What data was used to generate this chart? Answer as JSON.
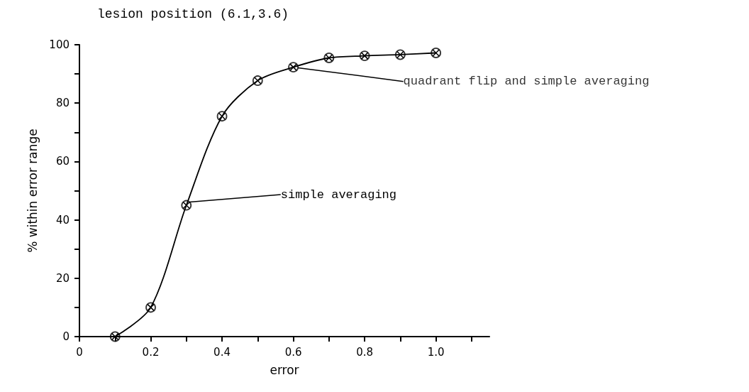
{
  "chart_data": {
    "type": "line",
    "title": "lesion position (6.1,3.6)",
    "xlabel": "error",
    "ylabel": "% within error range",
    "x": [
      0.1,
      0.2,
      0.3,
      0.4,
      0.5,
      0.6,
      0.7,
      0.8,
      0.9,
      1.0
    ],
    "series": [
      {
        "name": "simple averaging",
        "type": "line",
        "marker": "cross",
        "color": "#000000",
        "values": [
          0,
          10,
          45,
          75.5,
          87.7,
          92.3,
          95.5,
          96.2,
          96.6,
          97.2
        ]
      },
      {
        "name": "quadrant flip and simple averaging",
        "type": "scatter",
        "marker": "circle",
        "color": "#000000",
        "values": [
          0,
          10,
          45,
          75.5,
          87.7,
          92.3,
          95.5,
          96.2,
          96.6,
          97.2
        ]
      }
    ],
    "xlim": [
      0,
      1.15
    ],
    "xticks": [
      0,
      {
        "value": 0.1,
        "label": null
      },
      0.2,
      {
        "value": 0.3,
        "label": null
      },
      0.4,
      {
        "value": 0.5,
        "label": null
      },
      0.6,
      {
        "value": 0.7,
        "label": null
      },
      0.8,
      {
        "value": 0.9,
        "label": null
      },
      {
        "value": 1,
        "label": "1.0"
      },
      {
        "value": 1.1,
        "label": null
      }
    ],
    "ylim": [
      0,
      100
    ],
    "yticks": [
      0,
      {
        "value": 10,
        "label": null
      },
      20,
      {
        "value": 30,
        "label": null
      },
      40,
      {
        "value": 50,
        "label": null
      },
      60,
      {
        "value": 70,
        "label": null
      },
      80,
      {
        "value": 90,
        "label": null
      },
      100
    ],
    "grid": false,
    "legend": false
  }
}
